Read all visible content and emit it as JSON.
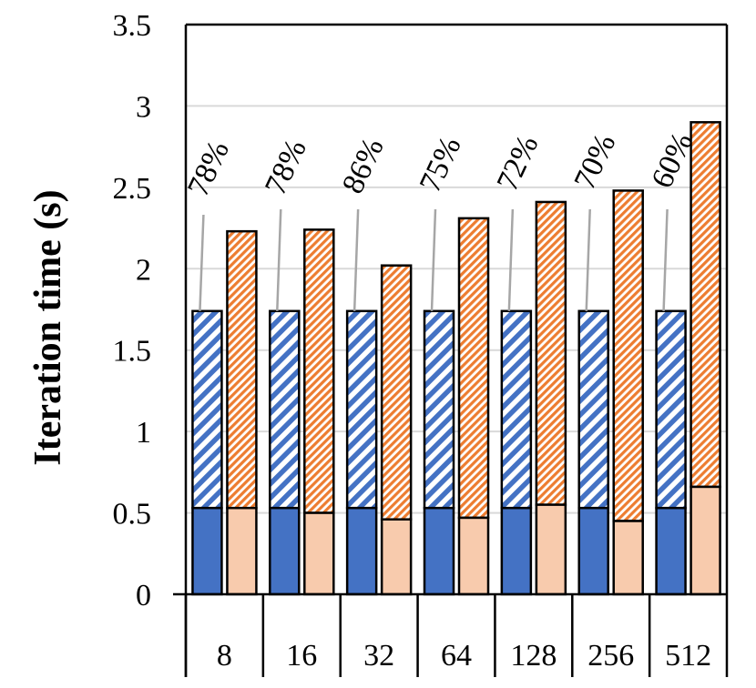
{
  "chart_data": {
    "type": "bar",
    "ylabel": "Iteration time (s)",
    "xlabel": "",
    "ylim": [
      0,
      3.5
    ],
    "yticks": [
      "0",
      "0.5",
      "1",
      "1.5",
      "2",
      "2.5",
      "3",
      "3.5"
    ],
    "categories": [
      "8",
      "16",
      "32",
      "64",
      "128",
      "256",
      "512"
    ],
    "grid": true,
    "stacked": true,
    "series_groups": [
      {
        "colors": {
          "base": "#4472c4",
          "hatch": "#4472c4"
        },
        "base_values": [
          0.53,
          0.53,
          0.53,
          0.53,
          0.53,
          0.53,
          0.53
        ],
        "total_values": [
          1.74,
          1.74,
          1.74,
          1.74,
          1.74,
          1.74,
          1.74
        ]
      },
      {
        "colors": {
          "base": "#f8cbad",
          "hatch": "#ed7d31"
        },
        "base_values": [
          0.53,
          0.5,
          0.46,
          0.47,
          0.55,
          0.45,
          0.66
        ],
        "total_values": [
          2.23,
          2.24,
          2.02,
          2.31,
          2.41,
          2.48,
          2.9
        ]
      }
    ],
    "annotations": [
      "78%",
      "78%",
      "86%",
      "75%",
      "72%",
      "70%",
      "60%"
    ]
  }
}
